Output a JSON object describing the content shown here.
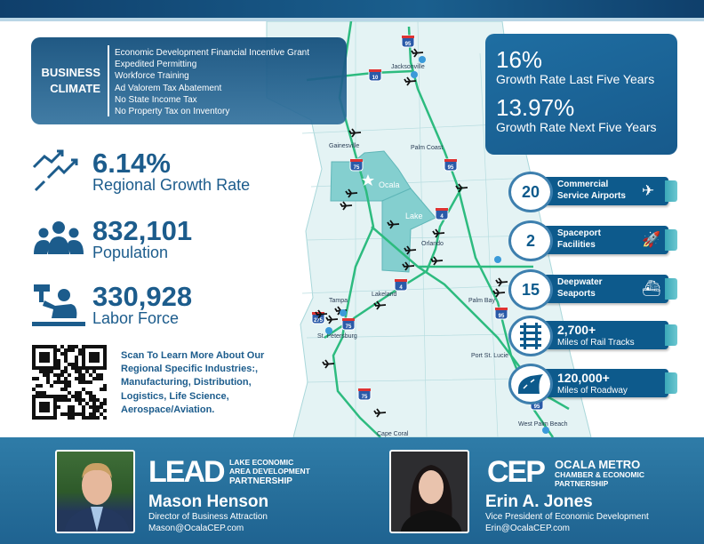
{
  "business_climate": {
    "title_line1": "BUSINESS",
    "title_line2": "CLIMATE",
    "items": [
      "Economic Development Financial Incentive Grant",
      "Expedited Permitting",
      "Workforce Training",
      "Ad Valorem Tax Abatement",
      "No State Income Tax",
      "No Property Tax on Inventory"
    ]
  },
  "stats": [
    {
      "value": "6.14%",
      "label": "Regional Growth Rate",
      "icon": "trend-arrows-icon"
    },
    {
      "value": "832,101",
      "label": "Population",
      "icon": "people-icon"
    },
    {
      "value": "330,928",
      "label": "Labor Force",
      "icon": "worker-icon"
    }
  ],
  "qr": {
    "text": "Scan To Learn More About Our Regional Specific Industries:, Manufacturing, Distribution, Logistics, Life Science, Aerospace/Aviation."
  },
  "growth": [
    {
      "value": "16%",
      "label": "Growth Rate Last Five Years"
    },
    {
      "value": "13.97%",
      "label": "Growth Rate Next Five Years"
    }
  ],
  "features": [
    {
      "value": "20",
      "label1": "Commercial",
      "label2": "Service Airports",
      "icon": "airplane-icon"
    },
    {
      "value": "2",
      "label1": "Spaceport",
      "label2": "Facilities",
      "icon": "rocket-icon"
    },
    {
      "value": "15",
      "label1": "Deepwater",
      "label2": "Seaports",
      "icon": "ship-icon"
    },
    {
      "value": "2,700+",
      "label": "Miles of Rail Tracks",
      "icon": "rail-tracks-icon"
    },
    {
      "value": "120,000+",
      "label": "Miles of Roadway",
      "icon": "road-icon"
    }
  ],
  "map": {
    "cities": [
      "Jacksonville",
      "Gainesville",
      "Palm Coast",
      "Ocala",
      "Lake",
      "Orlando",
      "Lakeland",
      "Tampa",
      "St. Petersburg",
      "Palm Bay",
      "Port St. Lucie",
      "West Palm Beach",
      "Cape Coral"
    ],
    "shields": [
      "95",
      "10",
      "75",
      "95",
      "4",
      "4",
      "275",
      "75",
      "95",
      "75",
      "95"
    ]
  },
  "contacts": [
    {
      "org_logo": "LEAD",
      "org_line1": "LAKE ECONOMIC",
      "org_line2": "AREA DEVELOPMENT",
      "org_line3": "PARTNERSHIP",
      "name": "Mason Henson",
      "title": "Director of Business Attraction",
      "email": "Mason@OcalaCEP.com"
    },
    {
      "org_logo": "CEP",
      "org_line1": "OCALA METRO",
      "org_line2": "CHAMBER & ECONOMIC",
      "org_line3": "PARTNERSHIP",
      "name": "Erin A. Jones",
      "title": "Vice President of Economic Development",
      "email": "Erin@OcalaCEP.com"
    }
  ],
  "colors": {
    "primary": "#1c5c8c",
    "road": "#2dbb7f",
    "county": "#84cfcf",
    "land": "#e4f3f4"
  }
}
